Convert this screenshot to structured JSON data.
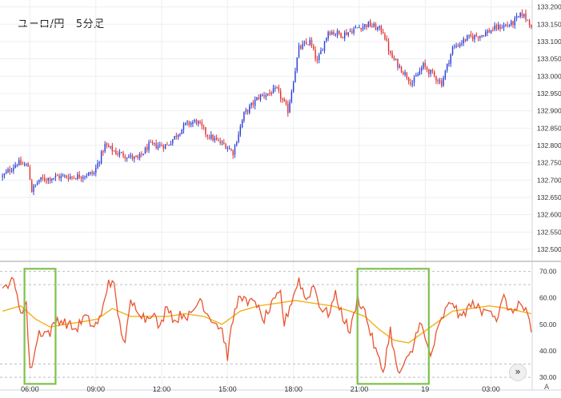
{
  "header": {
    "symbol": "ユーロ/円",
    "timeframe": "5分足"
  },
  "controls": {
    "scroll_icon": "double-chevron-right-icon",
    "scroll_label": "»",
    "auto_scale_label": "A"
  },
  "colors": {
    "up_candle": "#2b3fd6",
    "down_candle": "#e03232",
    "oscillator_line": "#e85530",
    "oscillator_avg": "#f2b21a",
    "highlight_box": "#7fc24a",
    "grid": "#eceff3"
  },
  "chart_data": [
    {
      "type": "candlestick",
      "title": "ユーロ/円 5分足",
      "ylim": [
        132.47,
        133.22
      ],
      "yticks": [
        "133.200",
        "133.150",
        "133.100",
        "133.050",
        "133.000",
        "132.950",
        "132.900",
        "132.850",
        "132.800",
        "132.750",
        "132.700",
        "132.650",
        "132.600",
        "132.550",
        "132.500"
      ],
      "xticks": [
        {
          "label": "06:00",
          "idx": 15
        },
        {
          "label": "09:00",
          "idx": 51
        },
        {
          "label": "12:00",
          "idx": 87
        },
        {
          "label": "15:00",
          "idx": 123
        },
        {
          "label": "18:00",
          "idx": 159
        },
        {
          "label": "21:00",
          "idx": 195
        },
        {
          "label": "19",
          "idx": 231
        },
        {
          "label": "03:00",
          "idx": 267
        }
      ],
      "bar_count": 290,
      "close_path": [
        [
          0,
          132.71
        ],
        [
          8,
          132.75
        ],
        [
          14,
          132.74
        ],
        [
          16,
          132.67
        ],
        [
          20,
          132.7
        ],
        [
          30,
          132.71
        ],
        [
          40,
          132.71
        ],
        [
          50,
          132.72
        ],
        [
          56,
          132.8
        ],
        [
          62,
          132.78
        ],
        [
          68,
          132.77
        ],
        [
          74,
          132.76
        ],
        [
          80,
          132.8
        ],
        [
          90,
          132.8
        ],
        [
          100,
          132.86
        ],
        [
          106,
          132.87
        ],
        [
          112,
          132.83
        ],
        [
          118,
          132.81
        ],
        [
          122,
          132.8
        ],
        [
          126,
          132.78
        ],
        [
          132,
          132.89
        ],
        [
          140,
          132.94
        ],
        [
          150,
          132.96
        ],
        [
          156,
          132.9
        ],
        [
          162,
          133.08
        ],
        [
          168,
          133.1
        ],
        [
          172,
          133.04
        ],
        [
          178,
          133.13
        ],
        [
          186,
          133.12
        ],
        [
          194,
          133.14
        ],
        [
          200,
          133.15
        ],
        [
          208,
          133.13
        ],
        [
          212,
          133.06
        ],
        [
          218,
          133.02
        ],
        [
          224,
          132.98
        ],
        [
          230,
          133.03
        ],
        [
          236,
          133.0
        ],
        [
          240,
          132.98
        ],
        [
          246,
          133.08
        ],
        [
          254,
          133.11
        ],
        [
          262,
          133.12
        ],
        [
          270,
          133.14
        ],
        [
          278,
          133.15
        ],
        [
          284,
          133.18
        ],
        [
          289,
          133.15
        ]
      ],
      "noise_amplitude": 0.012
    },
    {
      "type": "line",
      "ylim": [
        27,
        72
      ],
      "yticks": [
        "70.00",
        "60.00",
        "50.00",
        "40.00",
        "30.00"
      ],
      "dashed_levels": [
        70,
        65,
        35,
        30
      ],
      "series": [
        {
          "role": "oscillator",
          "points": [
            [
              0,
              62
            ],
            [
              5,
              68
            ],
            [
              10,
              55
            ],
            [
              13,
              58
            ],
            [
              15,
              32
            ],
            [
              17,
              38
            ],
            [
              20,
              47
            ],
            [
              26,
              47
            ],
            [
              30,
              52
            ],
            [
              36,
              50
            ],
            [
              40,
              48
            ],
            [
              45,
              53
            ],
            [
              50,
              49
            ],
            [
              54,
              53
            ],
            [
              58,
              67
            ],
            [
              61,
              64
            ],
            [
              64,
              50
            ],
            [
              67,
              43
            ],
            [
              70,
              58
            ],
            [
              74,
              56
            ],
            [
              78,
              52
            ],
            [
              82,
              55
            ],
            [
              86,
              48
            ],
            [
              90,
              58
            ],
            [
              94,
              51
            ],
            [
              98,
              54
            ],
            [
              103,
              53
            ],
            [
              108,
              60
            ],
            [
              112,
              54
            ],
            [
              116,
              51
            ],
            [
              120,
              48
            ],
            [
              123,
              38
            ],
            [
              126,
              52
            ],
            [
              130,
              62
            ],
            [
              134,
              57
            ],
            [
              138,
              60
            ],
            [
              142,
              51
            ],
            [
              148,
              58
            ],
            [
              152,
              62
            ],
            [
              154,
              50
            ],
            [
              158,
              59
            ],
            [
              162,
              67
            ],
            [
              166,
              59
            ],
            [
              170,
              65
            ],
            [
              174,
              56
            ],
            [
              178,
              54
            ],
            [
              182,
              61
            ],
            [
              186,
              53
            ],
            [
              190,
              47
            ],
            [
              194,
              60
            ],
            [
              198,
              55
            ],
            [
              201,
              47
            ],
            [
              204,
              40
            ],
            [
              208,
              32
            ],
            [
              212,
              48
            ],
            [
              216,
              31
            ],
            [
              220,
              35
            ],
            [
              224,
              40
            ],
            [
              228,
              52
            ],
            [
              231,
              44
            ],
            [
              234,
              38
            ],
            [
              238,
              48
            ],
            [
              242,
              55
            ],
            [
              246,
              59
            ],
            [
              250,
              52
            ],
            [
              254,
              56
            ],
            [
              258,
              58
            ],
            [
              262,
              54
            ],
            [
              266,
              57
            ],
            [
              270,
              52
            ],
            [
              274,
              60
            ],
            [
              278,
              54
            ],
            [
              282,
              58
            ],
            [
              286,
              55
            ],
            [
              289,
              47
            ]
          ]
        },
        {
          "role": "average",
          "points": [
            [
              0,
              55
            ],
            [
              10,
              57
            ],
            [
              18,
              52
            ],
            [
              26,
              49
            ],
            [
              34,
              50
            ],
            [
              44,
              51
            ],
            [
              52,
              52
            ],
            [
              60,
              56
            ],
            [
              70,
              53
            ],
            [
              80,
              53
            ],
            [
              90,
              53
            ],
            [
              100,
              54
            ],
            [
              110,
              53
            ],
            [
              120,
              50
            ],
            [
              130,
              55
            ],
            [
              140,
              57
            ],
            [
              150,
              58
            ],
            [
              160,
              59
            ],
            [
              170,
              58
            ],
            [
              180,
              57
            ],
            [
              190,
              55
            ],
            [
              198,
              53
            ],
            [
              206,
              48
            ],
            [
              214,
              44
            ],
            [
              222,
              43
            ],
            [
              230,
              47
            ],
            [
              238,
              51
            ],
            [
              246,
              55
            ],
            [
              256,
              56
            ],
            [
              266,
              57
            ],
            [
              276,
              56
            ],
            [
              289,
              54
            ]
          ]
        }
      ],
      "highlights": [
        {
          "from_idx": 12,
          "to_idx": 29,
          "from_val": 71,
          "to_val": 27.5
        },
        {
          "from_idx": 194,
          "to_idx": 233,
          "from_val": 71,
          "to_val": 27.5
        }
      ]
    }
  ]
}
